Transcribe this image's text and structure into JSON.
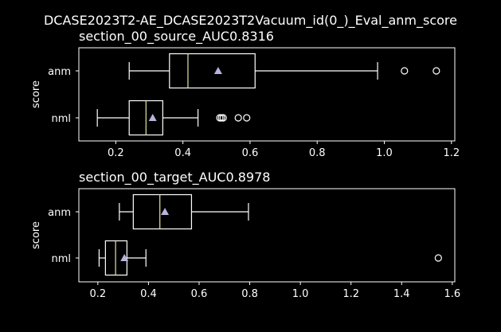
{
  "chart_data": {
    "suptitle": "DCASE2023T2-AE_DCASE2023T2Vacuum_id(0_)_Eval_anm_score",
    "colors": {
      "background": "#000000",
      "foreground": "#ffffff",
      "median": "#e8e6a0",
      "mean_marker": "#b8b4dc"
    },
    "charts": [
      {
        "type": "boxplot",
        "orientation": "horizontal",
        "title": "section_00_source_AUC0.8316",
        "ylabel": "score",
        "xlim": [
          0.09,
          1.21
        ],
        "xticks": [
          0.2,
          0.4,
          0.6,
          0.8,
          1.0,
          1.2
        ],
        "xtick_labels": [
          "0.2",
          "0.4",
          "0.6",
          "0.8",
          "1.0",
          "1.2"
        ],
        "categories": [
          "anm",
          "nml"
        ],
        "boxes": [
          {
            "name": "anm",
            "whislo": 0.24,
            "q1": 0.36,
            "med": 0.415,
            "q3": 0.615,
            "whishi": 0.98,
            "mean": 0.505,
            "fliers": [
              1.06,
              1.155
            ]
          },
          {
            "name": "nml",
            "whislo": 0.145,
            "q1": 0.24,
            "med": 0.29,
            "q3": 0.34,
            "whishi": 0.445,
            "mean": 0.31,
            "fliers": [
              0.51,
              0.515,
              0.52,
              0.565,
              0.59
            ]
          }
        ]
      },
      {
        "type": "boxplot",
        "orientation": "horizontal",
        "title": "section_00_target_AUC0.8978",
        "ylabel": "score",
        "xlim": [
          0.125,
          1.61
        ],
        "xticks": [
          0.2,
          0.4,
          0.6,
          0.8,
          1.0,
          1.2,
          1.4,
          1.6
        ],
        "xtick_labels": [
          "0.2",
          "0.4",
          "0.6",
          "0.8",
          "1.0",
          "1.2",
          "1.4",
          "1.6"
        ],
        "categories": [
          "anm",
          "nml"
        ],
        "boxes": [
          {
            "name": "anm",
            "whislo": 0.285,
            "q1": 0.34,
            "med": 0.445,
            "q3": 0.57,
            "whishi": 0.795,
            "mean": 0.465,
            "fliers": []
          },
          {
            "name": "nml",
            "whislo": 0.205,
            "q1": 0.23,
            "med": 0.27,
            "q3": 0.315,
            "whishi": 0.39,
            "mean": 0.305,
            "fliers": [
              1.545
            ]
          }
        ]
      }
    ]
  }
}
